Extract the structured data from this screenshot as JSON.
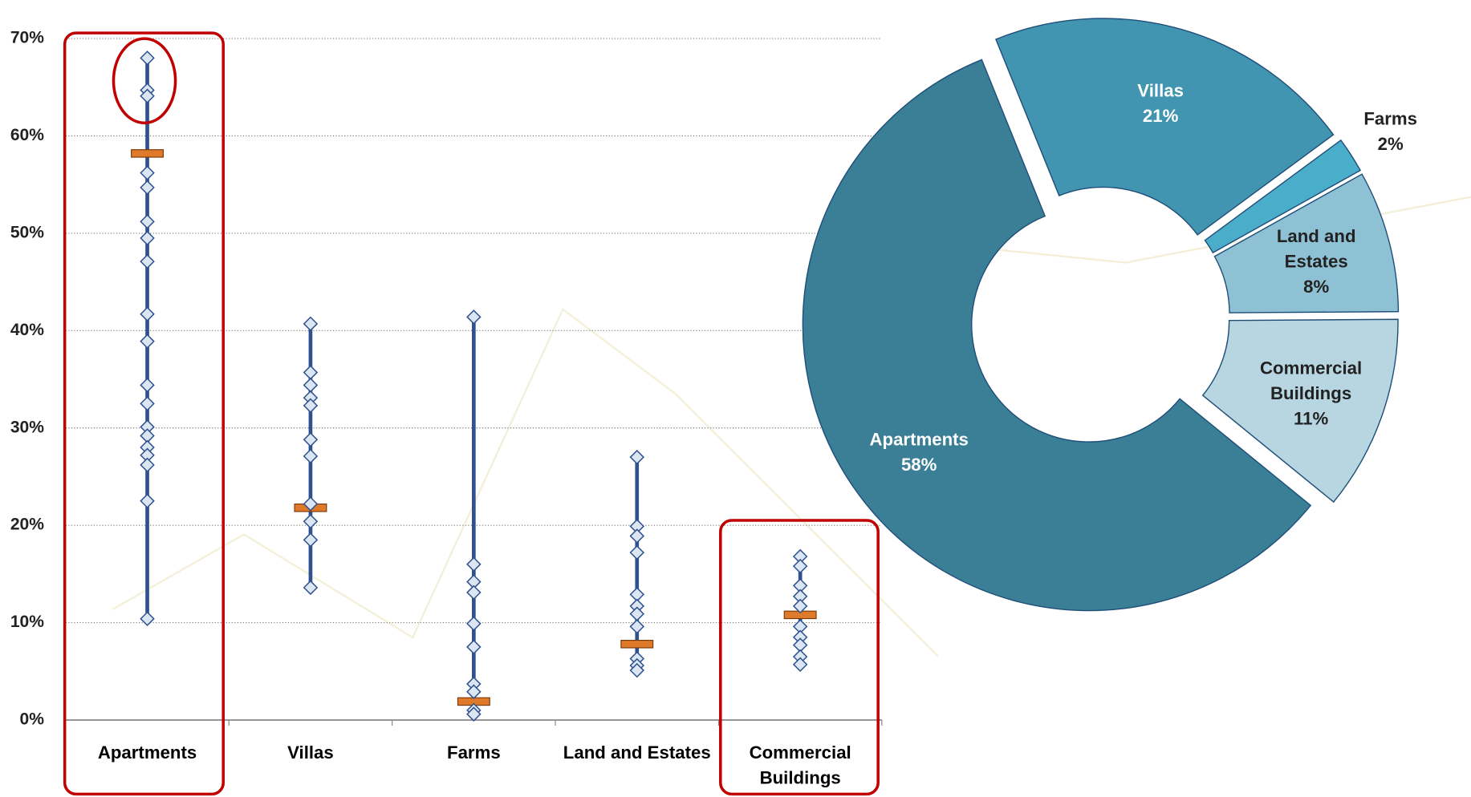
{
  "chart_data": [
    {
      "type": "dot",
      "categories": [
        "Apartments",
        "Villas",
        "Farms",
        "Land and Estates",
        "Commercial Buildings"
      ],
      "values": [
        [
          68.0,
          64.7,
          64.1,
          56.2,
          54.7,
          51.2,
          49.5,
          47.1,
          41.7,
          38.9,
          34.4,
          32.5,
          30.1,
          29.2,
          28.0,
          27.2,
          26.2,
          22.5,
          10.4
        ],
        [
          40.7,
          35.7,
          34.4,
          33.1,
          32.3,
          28.8,
          27.1,
          22.2,
          20.4,
          18.5,
          13.6
        ],
        [
          41.4,
          16.0,
          14.2,
          13.1,
          9.9,
          7.5,
          3.7,
          2.9,
          1.0,
          0.6
        ],
        [
          27.0,
          19.9,
          18.9,
          17.2,
          12.9,
          11.7,
          10.9,
          9.6,
          6.3,
          5.6,
          5.1
        ],
        [
          16.8,
          15.8,
          13.8,
          12.7,
          11.7,
          9.6,
          8.5,
          7.7,
          6.5,
          5.7
        ]
      ],
      "medians": [
        58.2,
        21.8,
        1.9,
        7.8,
        10.8
      ],
      "color": "#2f528f",
      "point_color": "#dce6f2",
      "median_color": "#e07a2b",
      "ylim": [
        0,
        70
      ],
      "yticks": [
        {
          "value": 0,
          "label": "0%"
        },
        {
          "value": 10,
          "label": "10%"
        },
        {
          "value": 20,
          "label": "20%"
        },
        {
          "value": 30,
          "label": "30%"
        },
        {
          "value": 40,
          "label": "40%"
        },
        {
          "value": 50,
          "label": "50%"
        },
        {
          "value": 60,
          "label": "60%"
        },
        {
          "value": 70,
          "label": "70%"
        }
      ],
      "grid": true
    },
    {
      "type": "donut",
      "categories": [
        "Villas",
        "Farms",
        "Land and Estates",
        "Commercial Buildings",
        "Apartments"
      ],
      "values": [
        21,
        2,
        8,
        11,
        58
      ],
      "value_labels": [
        "21%",
        "2%",
        "8%",
        "11%",
        "58%"
      ],
      "colors": [
        "#4295b0",
        "#4aaecb",
        "#8fc1d4",
        "#b8d6e2",
        "#3a7f96"
      ]
    }
  ]
}
